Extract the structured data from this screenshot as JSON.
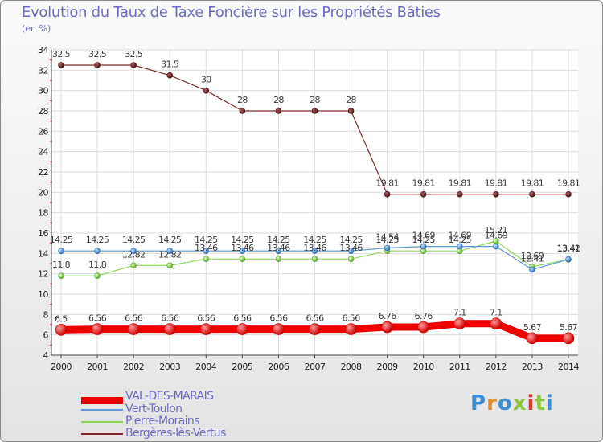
{
  "header": {
    "title": "Evolution du Taux de Taxe Foncière sur les Propriétés Bâties",
    "unit": "(en %)"
  },
  "logo": {
    "text": "Proxiti",
    "colors": [
      "#3b8fd6",
      "#f08a1c",
      "#3b8fd6",
      "#8cc63f",
      "#e03a2f",
      "#8cc63f",
      "#3b8fd6"
    ]
  },
  "chart_data": {
    "type": "line",
    "title": "Evolution du Taux de Taxe Foncière sur les Propriétés Bâties",
    "ylabel": "(en %)",
    "xlabel": "",
    "x": [
      "2000",
      "2001",
      "2002",
      "2003",
      "2004",
      "2005",
      "2006",
      "2007",
      "2008",
      "2009",
      "2010",
      "2011",
      "2012",
      "2013",
      "2014"
    ],
    "ylim": [
      4,
      34
    ],
    "yticks": [
      4,
      6,
      8,
      10,
      12,
      14,
      16,
      18,
      20,
      22,
      24,
      26,
      28,
      30,
      32,
      34
    ],
    "grid": true,
    "legend_position": "bottom-left",
    "series": [
      {
        "name": "VAL-DES-MARAIS",
        "color": "#ee0000",
        "values": [
          6.5,
          6.56,
          6.56,
          6.56,
          6.56,
          6.56,
          6.56,
          6.56,
          6.56,
          6.76,
          6.76,
          7.1,
          7.1,
          5.67,
          5.67
        ],
        "labels": [
          "6.5",
          "6.56",
          "6.56",
          "6.56",
          "6.56",
          "6.56",
          "6.56",
          "6.56",
          "6.56",
          "6.76",
          "6.76",
          "7.1",
          "7.1",
          "5.67",
          "5.67"
        ]
      },
      {
        "name": "Vert-Toulon",
        "color": "#5b9bd5",
        "values": [
          14.25,
          14.25,
          14.25,
          14.25,
          14.25,
          14.25,
          14.25,
          14.25,
          14.25,
          14.54,
          14.69,
          14.69,
          14.69,
          12.41,
          13.42
        ],
        "labels": [
          "14.25",
          "14.25",
          "14.25",
          "14.25",
          "14.25",
          "14.25",
          "14.25",
          "14.25",
          "14.25",
          "14.54",
          "14.69",
          "14.69",
          "14.69",
          "12.41",
          "13.42"
        ]
      },
      {
        "name": "Pierre-Morains",
        "color": "#8fd65a",
        "values": [
          11.8,
          11.8,
          12.82,
          12.82,
          13.46,
          13.46,
          13.46,
          13.46,
          13.46,
          14.25,
          14.25,
          14.25,
          15.21,
          12.69,
          13.41
        ],
        "labels": [
          "11.8",
          "11.8",
          "12.82",
          "12.82",
          "13.46",
          "13.46",
          "13.46",
          "13.46",
          "13.46",
          "14.25",
          "14.25",
          "14.25",
          "15.21",
          "12.69",
          "13.41"
        ]
      },
      {
        "name": "Bergères-lès-Vertus",
        "color": "#7b2b2b",
        "values": [
          32.5,
          32.5,
          32.5,
          31.5,
          30,
          28,
          28,
          28,
          28,
          19.81,
          19.81,
          19.81,
          19.81,
          19.81,
          19.81
        ],
        "labels": [
          "32.5",
          "32.5",
          "32.5",
          "31.5",
          "30",
          "28",
          "28",
          "28",
          "28",
          "19.81",
          "19.81",
          "19.81",
          "19.81",
          "19.81",
          "19.81"
        ]
      }
    ]
  }
}
